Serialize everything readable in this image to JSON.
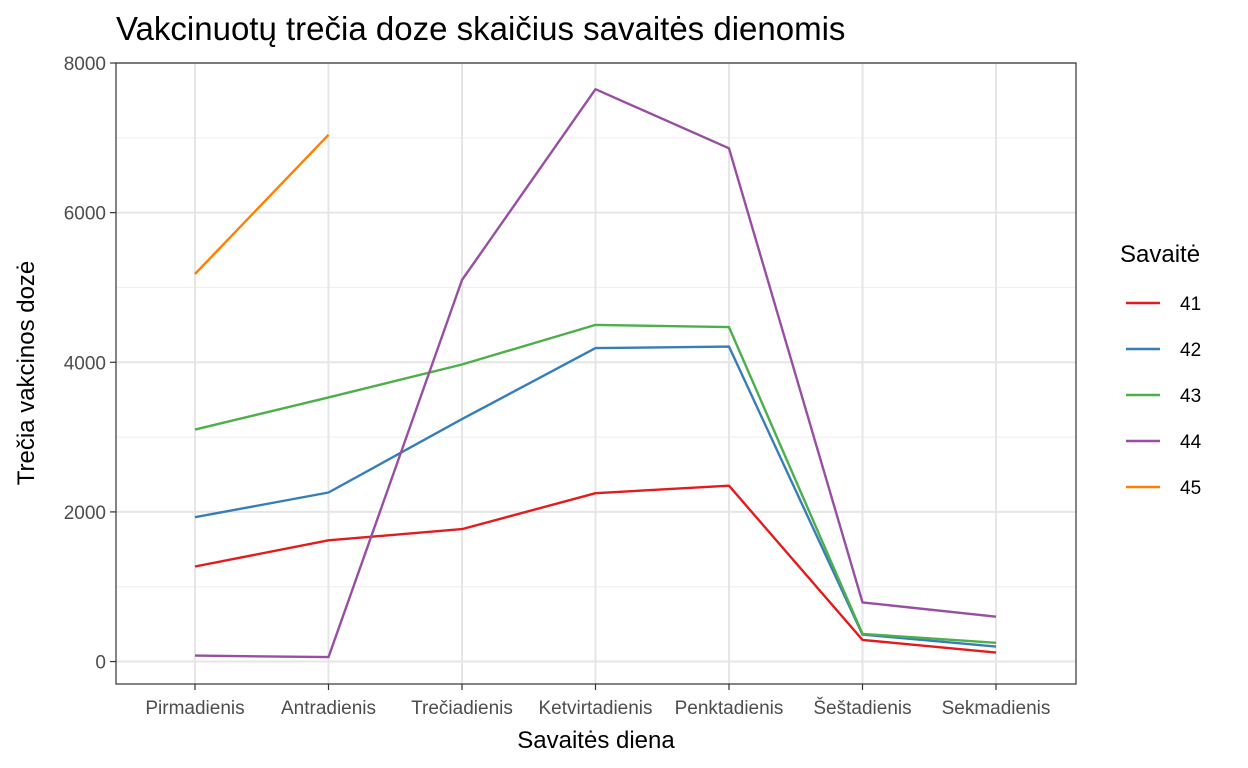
{
  "chart_data": {
    "type": "line",
    "title": "Vakcinuotų trečia doze skaičius savaitės dienomis",
    "xlabel": "Savaitės diena",
    "ylabel": "Trečia vakcinos dozė",
    "categories": [
      "Pirmadienis",
      "Antradienis",
      "Trečiadienis",
      "Ketvirtadienis",
      "Penktadienis",
      "Šeštadienis",
      "Sekmadienis"
    ],
    "ylim": [
      -300,
      8000
    ],
    "yticks": [
      0,
      2000,
      4000,
      6000,
      8000
    ],
    "grid": true,
    "legend": {
      "title": "Savaitė",
      "position": "right"
    },
    "series": [
      {
        "name": "41",
        "color": "#E41A1C",
        "values": [
          1270,
          1620,
          1770,
          2250,
          2350,
          290,
          120
        ]
      },
      {
        "name": "42",
        "color": "#377EB8",
        "values": [
          1930,
          2260,
          3240,
          4190,
          4210,
          360,
          200
        ]
      },
      {
        "name": "43",
        "color": "#4DAF4A",
        "values": [
          3100,
          3530,
          3970,
          4500,
          4470,
          370,
          250
        ]
      },
      {
        "name": "44",
        "color": "#984EA3",
        "values": [
          80,
          60,
          5100,
          7650,
          6860,
          790,
          600
        ]
      },
      {
        "name": "45",
        "color": "#FF7F00",
        "values": [
          5180,
          7040,
          null,
          null,
          null,
          null,
          null
        ]
      }
    ]
  }
}
